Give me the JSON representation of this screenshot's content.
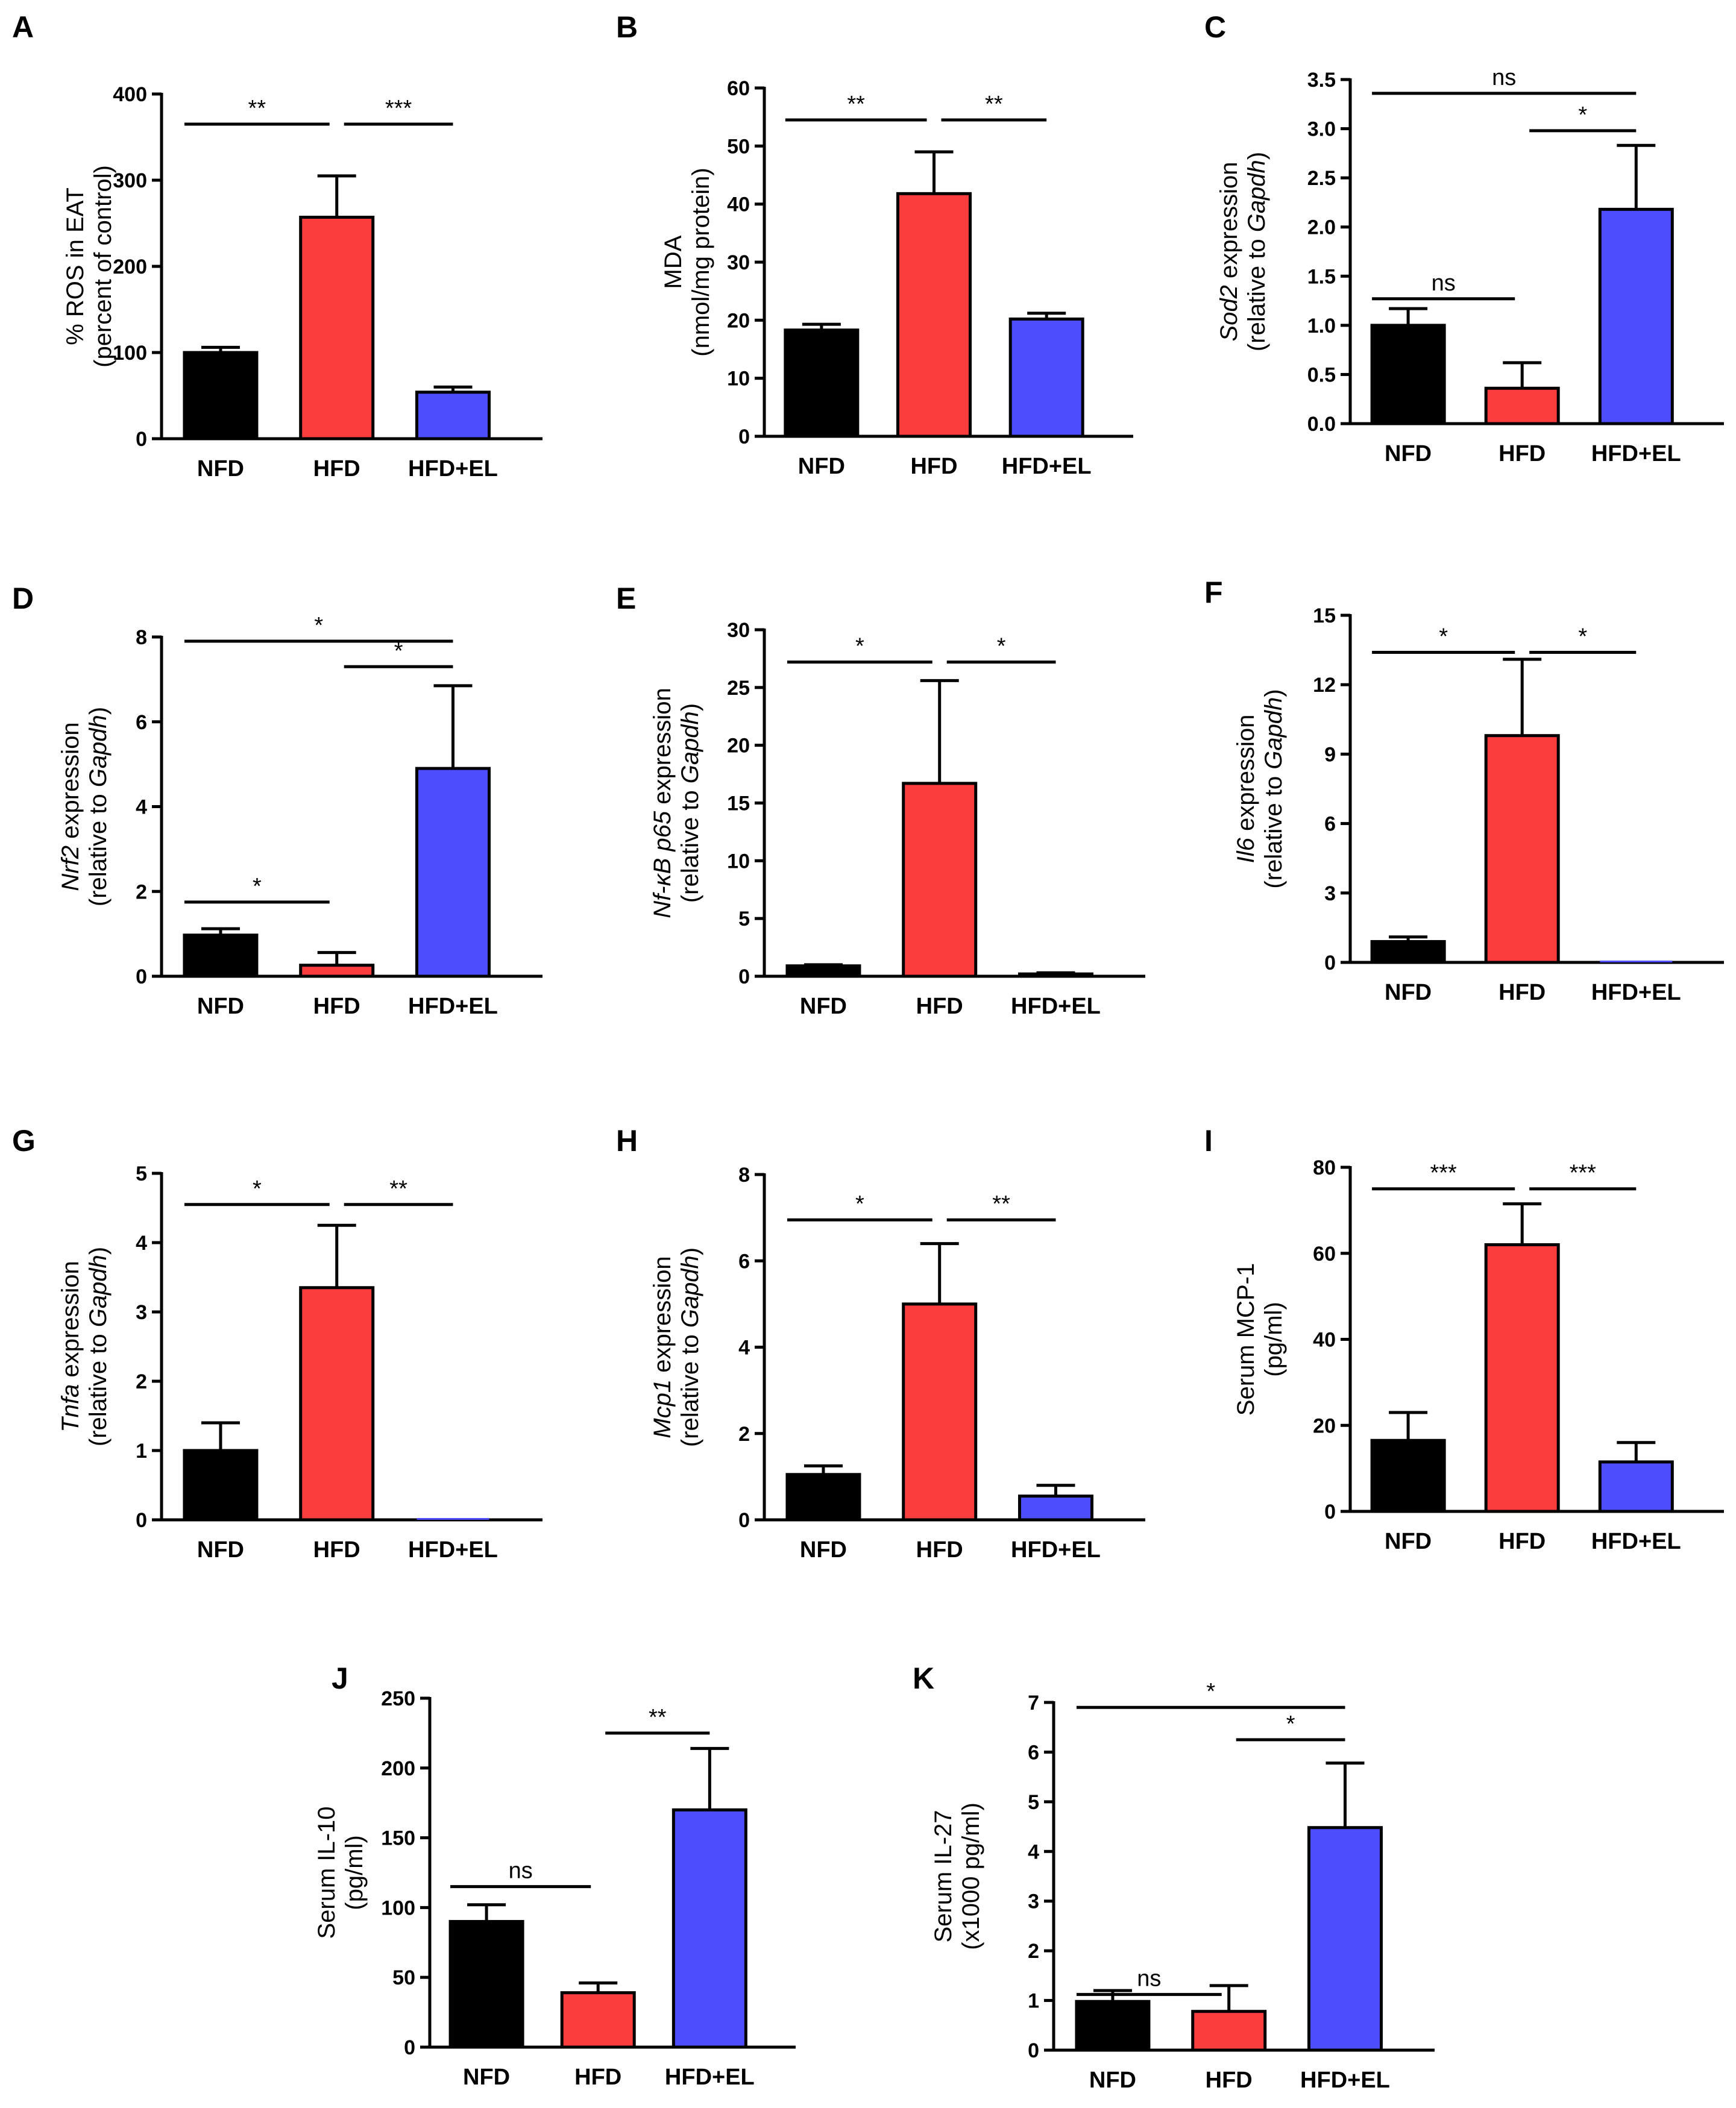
{
  "figure_title": "",
  "colors": {
    "NFD": "#000000",
    "HFD": "#fc3d3d",
    "HFD+EL": "#4d4dfc",
    "axis": "#000000"
  },
  "chart_data": [
    {
      "id": "A",
      "type": "bar",
      "letter": "A",
      "categories": [
        "NFD",
        "HFD",
        "HFD+EL"
      ],
      "values": [
        100,
        257,
        54
      ],
      "errors": [
        6,
        48,
        6
      ],
      "ylim": [
        0,
        400
      ],
      "yticks": [
        "0",
        "100",
        "200",
        "300",
        "400"
      ],
      "ylabel_lines": [
        [
          {
            "t": "% ROS in EAT",
            "i": false
          }
        ],
        [
          {
            "t": "(percent of control)",
            "i": false
          }
        ]
      ],
      "sig": [
        {
          "from": 0,
          "to": 1,
          "y": 365,
          "label": "**"
        },
        {
          "from": 1,
          "to": 2,
          "y": 365,
          "label": "***"
        }
      ]
    },
    {
      "id": "B",
      "type": "bar",
      "letter": "B",
      "categories": [
        "NFD",
        "HFD",
        "HFD+EL"
      ],
      "values": [
        18.3,
        41.8,
        20.2
      ],
      "errors": [
        1.0,
        7.2,
        1.0
      ],
      "ylim": [
        0,
        60
      ],
      "yticks": [
        "0",
        "10",
        "20",
        "30",
        "40",
        "50",
        "60"
      ],
      "ylabel_lines": [
        [
          {
            "t": "MDA",
            "i": false
          }
        ],
        [
          {
            "t": "(nmol/mg protein)",
            "i": false
          }
        ]
      ],
      "sig": [
        {
          "from": 0,
          "to": 1,
          "y": 54.5,
          "label": "**"
        },
        {
          "from": 1,
          "to": 2,
          "y": 54.5,
          "label": "**"
        }
      ]
    },
    {
      "id": "C",
      "type": "bar",
      "letter": "C",
      "categories": [
        "NFD",
        "HFD",
        "HFD+EL"
      ],
      "values": [
        1.0,
        0.36,
        2.18
      ],
      "errors": [
        0.17,
        0.26,
        0.65
      ],
      "ylim": [
        0,
        3.5
      ],
      "yticks": [
        "0.0",
        "0.5",
        "1.0",
        "1.5",
        "2.0",
        "2.5",
        "3.0",
        "3.5"
      ],
      "ylabel_lines": [
        [
          {
            "t": "Sod2",
            "i": true
          },
          {
            "t": " expression",
            "i": false
          }
        ],
        [
          {
            "t": "(relative to ",
            "i": false
          },
          {
            "t": "Gapdh",
            "i": true
          },
          {
            "t": ")",
            "i": false
          }
        ]
      ],
      "sig": [
        {
          "from": 0,
          "to": 2,
          "y": 3.36,
          "label": "ns"
        },
        {
          "from": 1,
          "to": 2,
          "y": 2.98,
          "label": "*"
        },
        {
          "from": 0,
          "to": 1,
          "y": 1.27,
          "label": "ns"
        }
      ]
    },
    {
      "id": "D",
      "type": "bar",
      "letter": "D",
      "categories": [
        "NFD",
        "HFD",
        "HFD+EL"
      ],
      "values": [
        0.97,
        0.26,
        4.9
      ],
      "errors": [
        0.15,
        0.3,
        1.95
      ],
      "ylim": [
        0,
        8
      ],
      "yticks": [
        "0",
        "2",
        "4",
        "6",
        "8"
      ],
      "ylabel_lines": [
        [
          {
            "t": "Nrf2",
            "i": true
          },
          {
            "t": " expression",
            "i": false
          }
        ],
        [
          {
            "t": "(relative to ",
            "i": false
          },
          {
            "t": "Gapdh",
            "i": true
          },
          {
            "t": ")",
            "i": false
          }
        ]
      ],
      "sig": [
        {
          "from": 0,
          "to": 2,
          "y": 7.9,
          "label": "*"
        },
        {
          "from": 1,
          "to": 2,
          "y": 7.3,
          "label": "*"
        },
        {
          "from": 0,
          "to": 1,
          "y": 1.75,
          "label": "*"
        }
      ]
    },
    {
      "id": "E",
      "type": "bar",
      "letter": "E",
      "categories": [
        "NFD",
        "HFD",
        "HFD+EL"
      ],
      "values": [
        0.9,
        16.7,
        0.2
      ],
      "errors": [
        0.1,
        8.9,
        0.1
      ],
      "ylim": [
        0,
        30
      ],
      "yticks": [
        "0",
        "5",
        "10",
        "15",
        "20",
        "25",
        "30"
      ],
      "ylabel_lines": [
        [
          {
            "t": "Nf-κB p65",
            "i": true
          },
          {
            "t": " expression",
            "i": false
          }
        ],
        [
          {
            "t": "(relative to ",
            "i": false
          },
          {
            "t": "Gapdh",
            "i": true
          },
          {
            "t": ")",
            "i": false
          }
        ]
      ],
      "sig": [
        {
          "from": 0,
          "to": 1,
          "y": 27.2,
          "label": "*"
        },
        {
          "from": 1,
          "to": 2,
          "y": 27.2,
          "label": "*"
        }
      ]
    },
    {
      "id": "F",
      "type": "bar",
      "letter": "F",
      "categories": [
        "NFD",
        "HFD",
        "HFD+EL"
      ],
      "values": [
        0.9,
        9.8,
        0.0
      ],
      "errors": [
        0.2,
        3.3,
        0.0
      ],
      "ylim": [
        0,
        15
      ],
      "yticks": [
        "0",
        "3",
        "6",
        "9",
        "12",
        "15"
      ],
      "ylabel_lines": [
        [
          {
            "t": "Il6",
            "i": true
          },
          {
            "t": " expression",
            "i": false
          }
        ],
        [
          {
            "t": "(relative to ",
            "i": false
          },
          {
            "t": "Gapdh",
            "i": true
          },
          {
            "t": ")",
            "i": false
          }
        ]
      ],
      "sig": [
        {
          "from": 0,
          "to": 1,
          "y": 13.4,
          "label": "*"
        },
        {
          "from": 1,
          "to": 2,
          "y": 13.4,
          "label": "*"
        }
      ]
    },
    {
      "id": "G",
      "type": "bar",
      "letter": "G",
      "categories": [
        "NFD",
        "HFD",
        "HFD+EL"
      ],
      "values": [
        1.0,
        3.35,
        0.0
      ],
      "errors": [
        0.4,
        0.9,
        0.0
      ],
      "ylim": [
        0,
        5
      ],
      "yticks": [
        "0",
        "1",
        "2",
        "3",
        "4",
        "5"
      ],
      "ylabel_lines": [
        [
          {
            "t": "Tnfa",
            "i": true
          },
          {
            "t": " expression",
            "i": false
          }
        ],
        [
          {
            "t": "(relative to ",
            "i": false
          },
          {
            "t": "Gapdh",
            "i": true
          },
          {
            "t": ")",
            "i": false
          }
        ]
      ],
      "sig": [
        {
          "from": 0,
          "to": 1,
          "y": 4.55,
          "label": "*"
        },
        {
          "from": 1,
          "to": 2,
          "y": 4.55,
          "label": "**"
        }
      ]
    },
    {
      "id": "H",
      "type": "bar",
      "letter": "H",
      "categories": [
        "NFD",
        "HFD",
        "HFD+EL"
      ],
      "values": [
        1.05,
        5.0,
        0.55
      ],
      "errors": [
        0.2,
        1.4,
        0.25
      ],
      "ylim": [
        0,
        8
      ],
      "yticks": [
        "0",
        "2",
        "4",
        "6",
        "8"
      ],
      "ylabel_lines": [
        [
          {
            "t": "Mcp1",
            "i": true
          },
          {
            "t": " expression",
            "i": false
          }
        ],
        [
          {
            "t": "(relative to ",
            "i": false
          },
          {
            "t": "Gapdh",
            "i": true
          },
          {
            "t": ")",
            "i": false
          }
        ]
      ],
      "sig": [
        {
          "from": 0,
          "to": 1,
          "y": 6.95,
          "label": "*"
        },
        {
          "from": 1,
          "to": 2,
          "y": 6.95,
          "label": "**"
        }
      ]
    },
    {
      "id": "I",
      "type": "bar",
      "letter": "I",
      "categories": [
        "NFD",
        "HFD",
        "HFD+EL"
      ],
      "values": [
        16.5,
        62.0,
        11.5
      ],
      "errors": [
        6.5,
        9.5,
        4.5
      ],
      "ylim": [
        0,
        80
      ],
      "yticks": [
        "0",
        "20",
        "40",
        "60",
        "80"
      ],
      "ylabel_lines": [
        [
          {
            "t": "Serum MCP-1",
            "i": false
          }
        ],
        [
          {
            "t": "(pg/ml)",
            "i": false
          }
        ]
      ],
      "sig": [
        {
          "from": 0,
          "to": 1,
          "y": 75,
          "label": "***"
        },
        {
          "from": 1,
          "to": 2,
          "y": 75,
          "label": "***"
        }
      ]
    },
    {
      "id": "J",
      "type": "bar",
      "letter": "J",
      "categories": [
        "NFD",
        "HFD",
        "HFD+EL"
      ],
      "values": [
        90,
        39,
        170
      ],
      "errors": [
        12,
        7,
        44
      ],
      "ylim": [
        0,
        250
      ],
      "yticks": [
        "0",
        "50",
        "100",
        "150",
        "200",
        "250"
      ],
      "ylabel_lines": [
        [
          {
            "t": "Serum IL-10",
            "i": false
          }
        ],
        [
          {
            "t": "(pg/ml)",
            "i": false
          }
        ]
      ],
      "sig": [
        {
          "from": 1,
          "to": 2,
          "y": 225,
          "label": "**"
        },
        {
          "from": 0,
          "to": 1,
          "y": 115,
          "label": "ns"
        }
      ]
    },
    {
      "id": "K",
      "type": "bar",
      "letter": "K",
      "categories": [
        "NFD",
        "HFD",
        "HFD+EL"
      ],
      "values": [
        0.98,
        0.78,
        4.48
      ],
      "errors": [
        0.22,
        0.52,
        1.3
      ],
      "ylim": [
        0,
        7
      ],
      "yticks": [
        "0",
        "1",
        "2",
        "3",
        "4",
        "5",
        "6",
        "7"
      ],
      "ylabel_lines": [
        [
          {
            "t": "Serum IL-27",
            "i": false
          }
        ],
        [
          {
            "t": "(x1000 pg/ml)",
            "i": false
          }
        ]
      ],
      "sig": [
        {
          "from": 0,
          "to": 2,
          "y": 6.9,
          "label": "*"
        },
        {
          "from": 1,
          "to": 2,
          "y": 6.25,
          "label": "*"
        },
        {
          "from": 0,
          "to": 1,
          "y": 1.12,
          "label": "ns"
        }
      ]
    }
  ]
}
